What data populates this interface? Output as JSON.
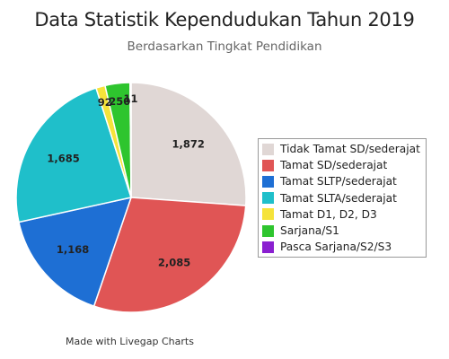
{
  "chart_data": {
    "type": "pie",
    "title": "Data Statistik Kependudukan Tahun 2019",
    "subtitle": "Berdasarkan Tingkat Pendidikan",
    "categories": [
      "Tidak Tamat SD/sederajat",
      "Tamat SD/sederajat",
      "Tamat SLTP/sederajat",
      "Tamat SLTA/sederajat",
      "Tamat D1, D2, D3",
      "Sarjana/S1",
      "Pasca Sarjana/S2/S3"
    ],
    "values": [
      1872,
      2085,
      1168,
      1685,
      92,
      250,
      11
    ],
    "value_labels": [
      "1,872",
      "2,085",
      "1,168",
      "1,685",
      "92",
      "250",
      "11"
    ],
    "colors": [
      "#e0d7d5",
      "#e05555",
      "#1e6fd4",
      "#1fbfca",
      "#f5e33a",
      "#2ec52e",
      "#8a1fd0"
    ],
    "legend_position": "right",
    "start_angle_deg": 0,
    "direction": "clockwise"
  },
  "footer": "Made with Livegap Charts"
}
